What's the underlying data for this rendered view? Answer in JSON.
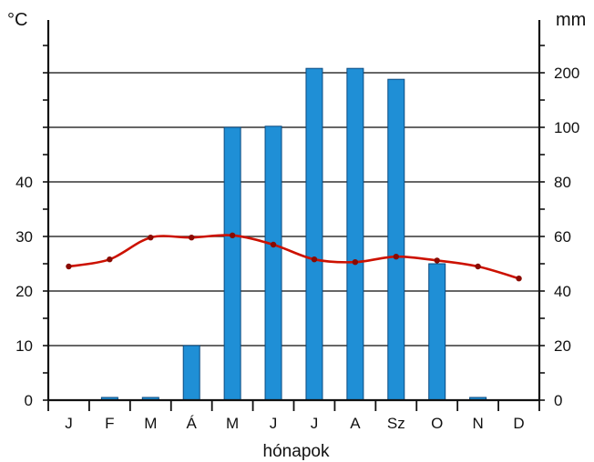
{
  "chart_data": {
    "type": "bar+line",
    "title": "",
    "xlabel": "hónapok",
    "categories": [
      "J",
      "F",
      "M",
      "Á",
      "M",
      "J",
      "J",
      "A",
      "Sz",
      "O",
      "N",
      "D"
    ],
    "left_axis": {
      "unit": "°C",
      "ticks": [
        "0",
        "10",
        "20",
        "30",
        "40"
      ],
      "range": [
        0,
        70
      ]
    },
    "right_axis": {
      "unit": "mm",
      "ticks": [
        "0",
        "20",
        "40",
        "60",
        "80",
        "100",
        "200"
      ]
    },
    "precipitation_bars": {
      "axis": "right",
      "values": [
        0,
        1,
        1,
        20,
        100,
        102,
        208,
        208,
        188,
        50,
        1,
        0
      ],
      "color": "#1f8fd6"
    },
    "temperature_line": {
      "axis": "left",
      "values": [
        24.5,
        25.8,
        29.8,
        29.8,
        30.2,
        28.5,
        25.8,
        25.3,
        26.3,
        25.6,
        24.5,
        22.3
      ],
      "color": "#cc1100"
    },
    "grid": true
  }
}
